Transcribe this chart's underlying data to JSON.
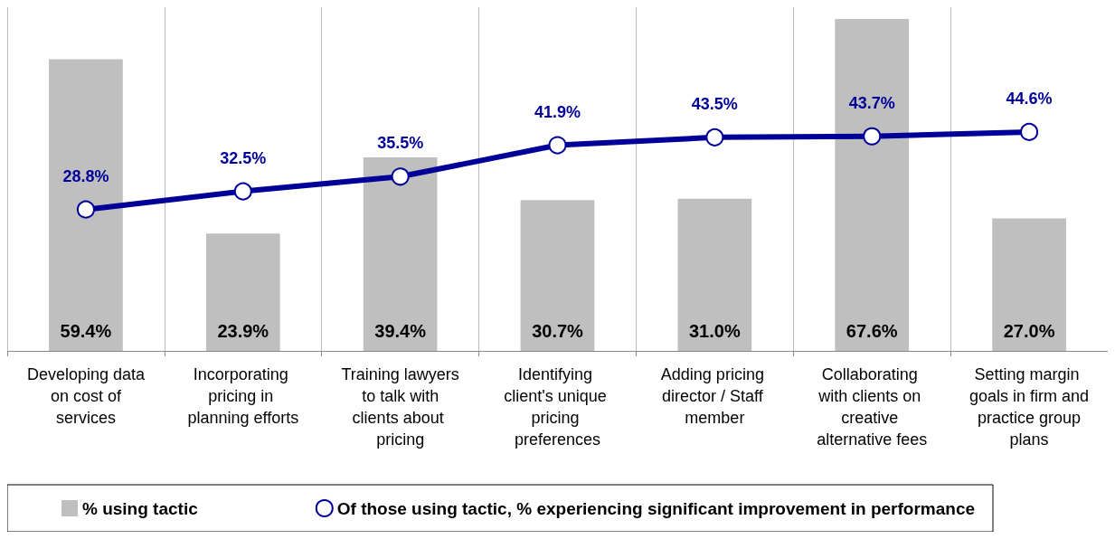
{
  "chart_data": {
    "type": "bar",
    "categories": [
      "Developing data on cost of services",
      "Incorporating pricing in planning efforts",
      "Training lawyers to talk with clients about pricing",
      "Identifying client's unique pricing preferences",
      "Adding pricing director / Staff member",
      "Collaborating with clients on creative alternative fees",
      "Setting margin goals in firm and practice group plans"
    ],
    "series": [
      {
        "name": "% using tactic",
        "color": "#bfbfbf",
        "values": [
          59.4,
          23.9,
          39.4,
          30.7,
          31.0,
          67.6,
          27.0
        ],
        "value_labels": [
          "59.4%",
          "23.9%",
          "39.4%",
          "30.7%",
          "31.0%",
          "67.6%",
          "27.0%"
        ]
      },
      {
        "name": "Of those using tactic, % experiencing significant improvement in performance",
        "type": "line",
        "color": "#000099",
        "values": [
          28.8,
          32.5,
          35.5,
          41.9,
          43.5,
          43.7,
          44.6
        ],
        "value_labels": [
          "28.8%",
          "32.5%",
          "35.5%",
          "41.9%",
          "43.5%",
          "43.7%",
          "44.6%"
        ]
      }
    ],
    "grid": "x",
    "legend": "bottom",
    "marker": "circle",
    "line_style": "solid",
    "tick_labels": "x"
  }
}
